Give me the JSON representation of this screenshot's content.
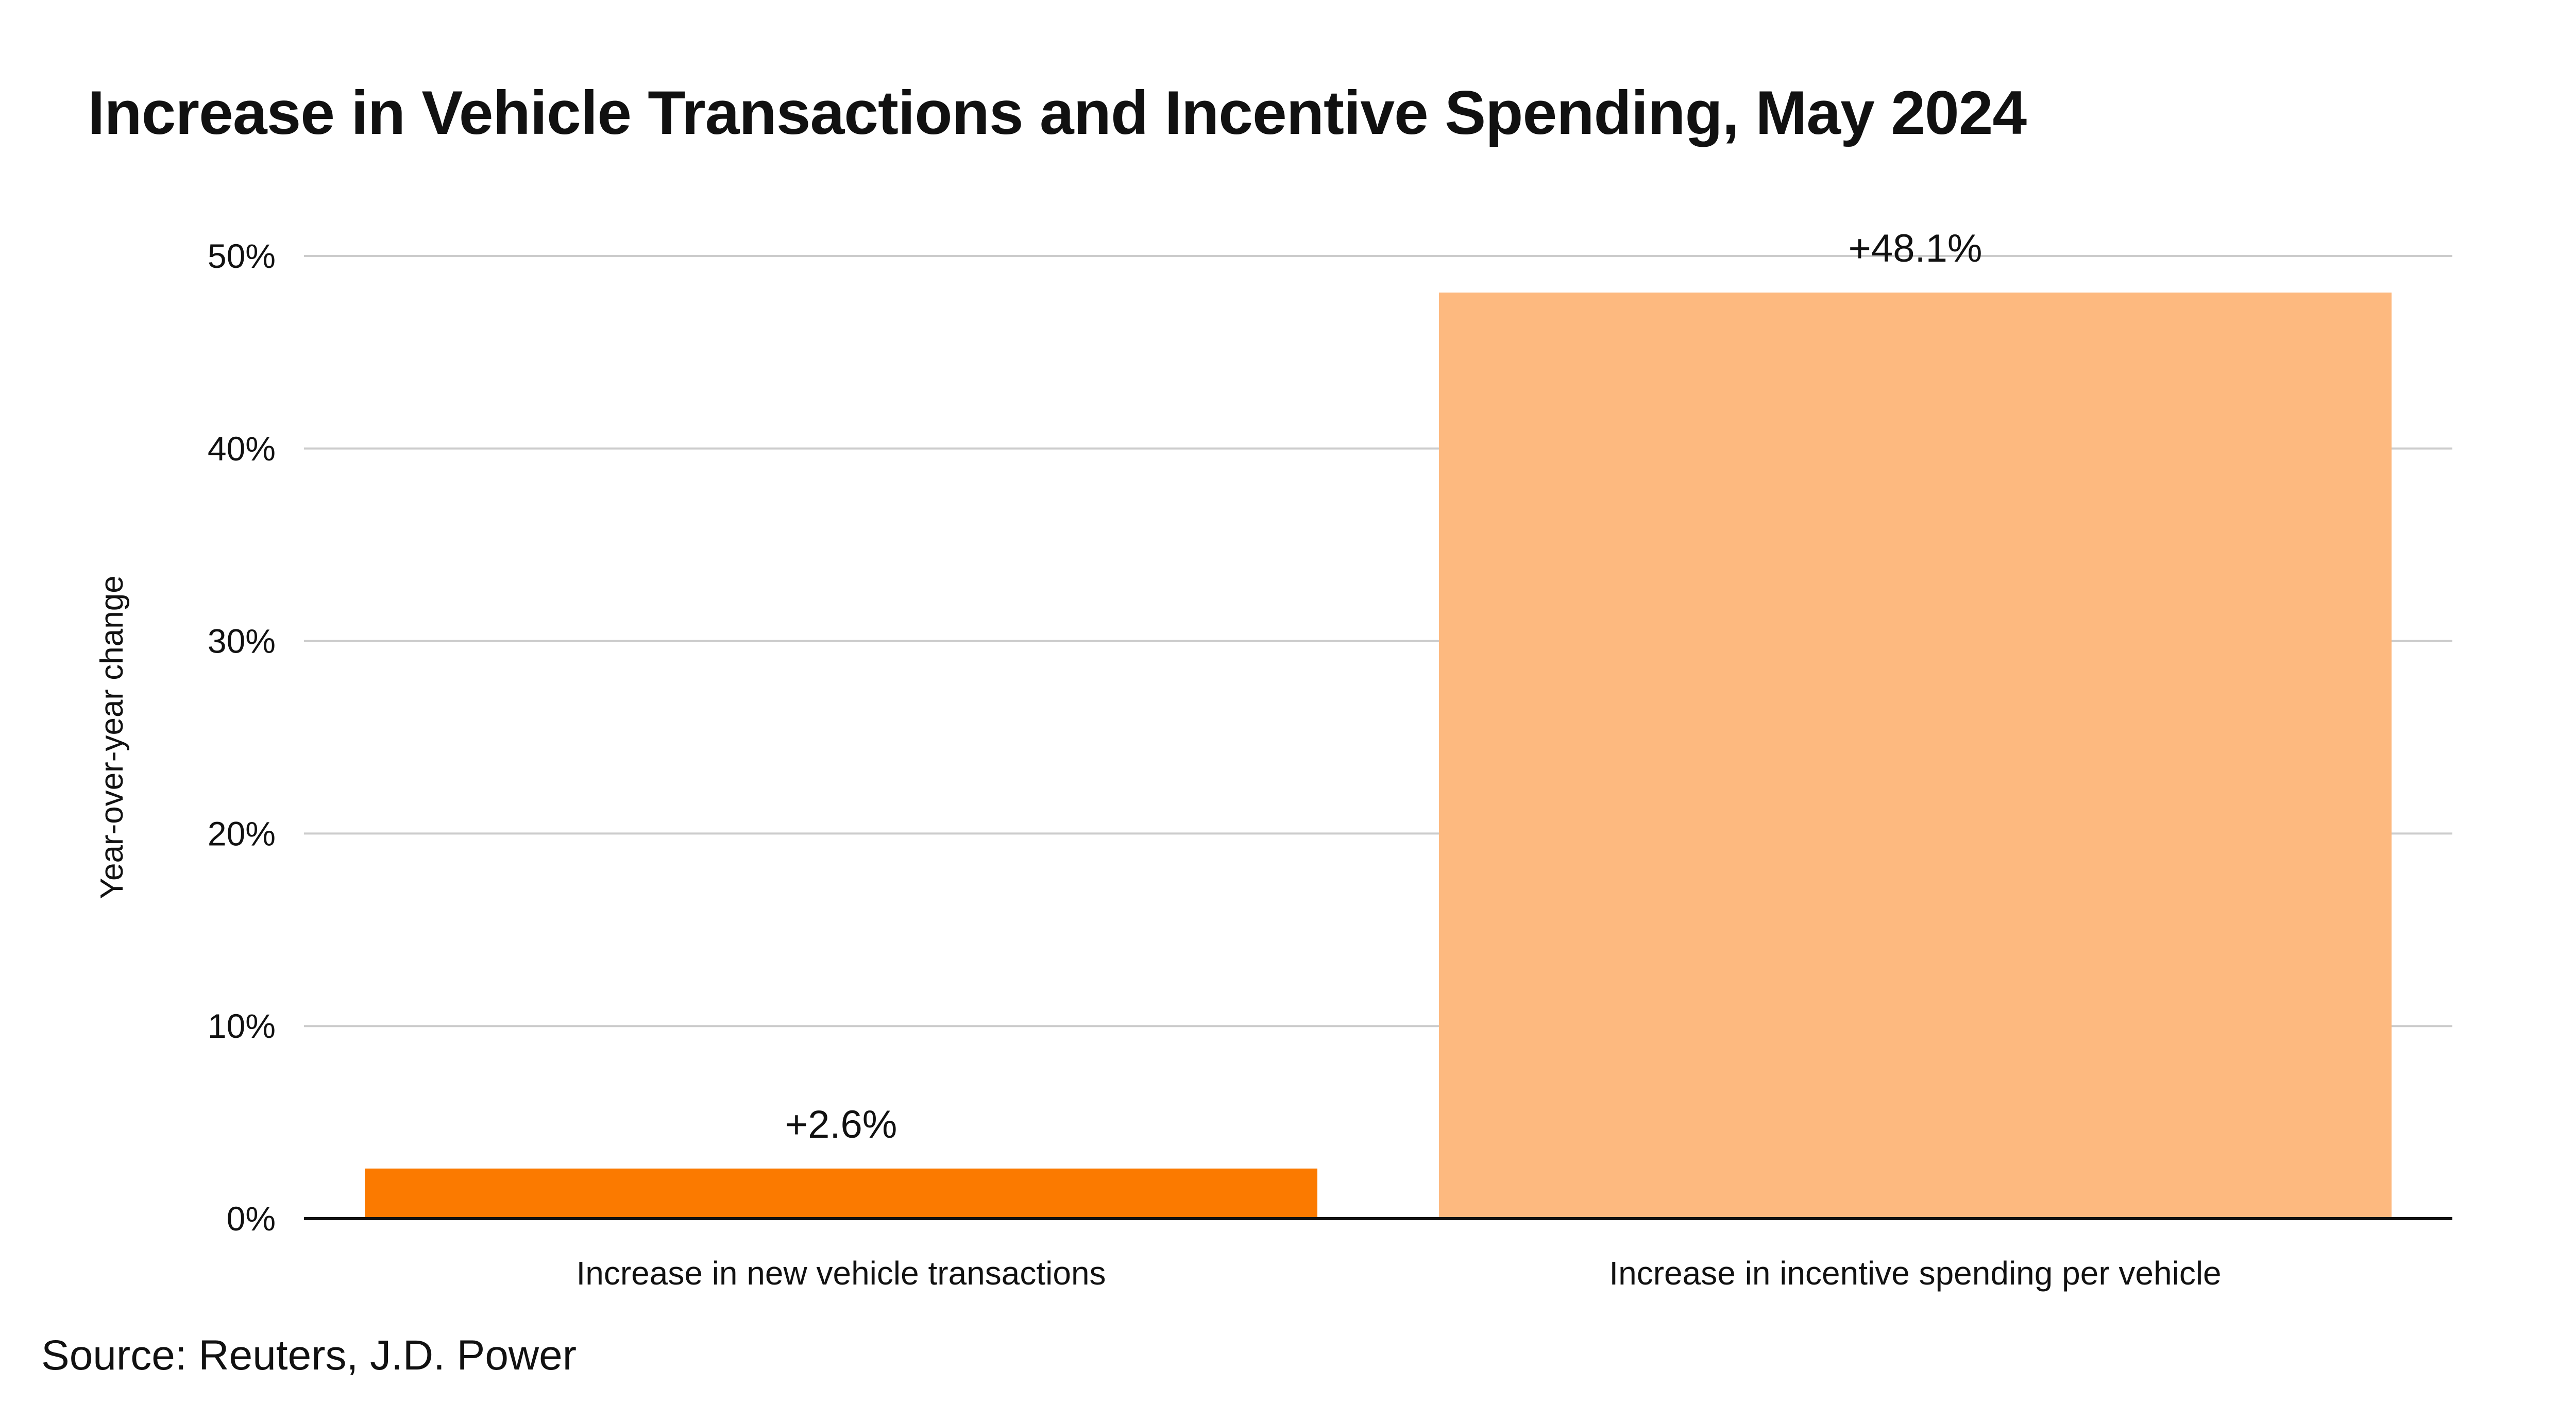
{
  "chart_data": {
    "type": "bar",
    "title": "Increase in Vehicle Transactions and Incentive Spending, May 2024",
    "ylabel": "Year-over-year change",
    "xlabel": "",
    "categories": [
      "Increase in new vehicle transactions",
      "Increase in incentive spending per vehicle"
    ],
    "values": [
      2.6,
      48.1
    ],
    "data_labels": [
      "+2.6%",
      "+48.1%"
    ],
    "bar_colors": [
      "#fb7a00",
      "#fdb97f"
    ],
    "ylim": [
      0,
      50
    ],
    "yticks": [
      0,
      10,
      20,
      30,
      40,
      50
    ],
    "ytick_labels": [
      "0%",
      "10%",
      "20%",
      "30%",
      "40%",
      "50%"
    ],
    "grid": true,
    "gridline_color": "#cccccc",
    "legend": "none"
  },
  "source": "Source: Reuters, J.D. Power"
}
